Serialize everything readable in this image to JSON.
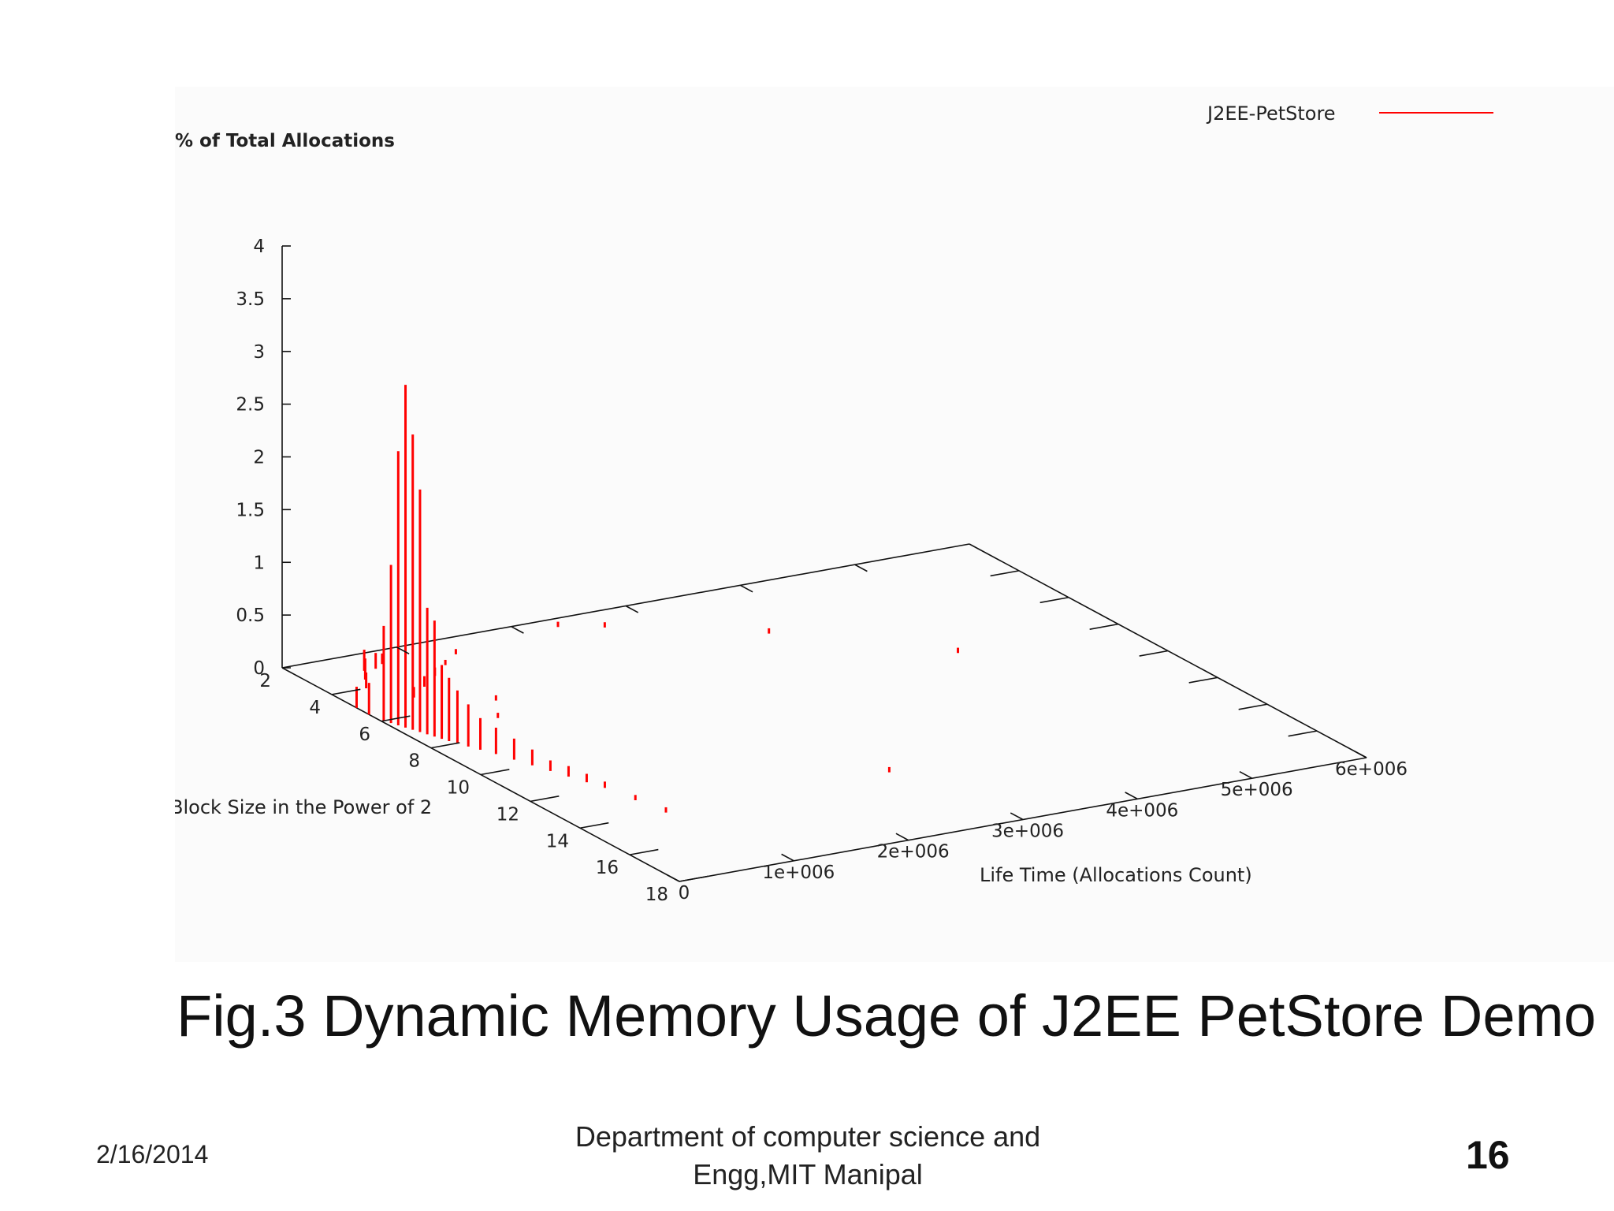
{
  "slide": {
    "caption": "Fig.3 Dynamic Memory Usage of J2EE PetStore Demo",
    "footer": {
      "date": "2/16/2014",
      "department_line1": "Department of computer science and",
      "department_line2": "Engg,MIT Manipal",
      "page_number": "16"
    }
  },
  "chart_data": {
    "type": "bar",
    "projection": "3d",
    "zlabel": "% of Total Allocations",
    "xlabel": "Life Time (Allocations Count)",
    "ylabel": "Block Size in the Power of 2",
    "legend": {
      "label": "J2EE-PetStore",
      "position": "top-right",
      "color": "#ff0000"
    },
    "z_ticks": [
      "0",
      "0.5",
      "1",
      "1.5",
      "2",
      "2.5",
      "3",
      "3.5",
      "4"
    ],
    "x_ticks": [
      "0",
      "1e+006",
      "2e+006",
      "3e+006",
      "4e+006",
      "5e+006",
      "6e+006"
    ],
    "y_ticks": [
      "2",
      "4",
      "6",
      "8",
      "10",
      "12",
      "14",
      "16",
      "18"
    ],
    "xlim": [
      0,
      6000000
    ],
    "ylim": [
      2,
      18
    ],
    "zlim": [
      0,
      4
    ],
    "series_color": "#ff0000",
    "series": [
      {
        "name": "J2EE-PetStore",
        "points": [
          {
            "x": 0,
            "y": 5,
            "z": 0.2
          },
          {
            "x": 0,
            "y": 5.5,
            "z": 0.3
          },
          {
            "x": 20000,
            "y": 6,
            "z": 0.9
          },
          {
            "x": 40000,
            "y": 6.2,
            "z": 1.5
          },
          {
            "x": 60000,
            "y": 6.4,
            "z": 2.6
          },
          {
            "x": 80000,
            "y": 6.6,
            "z": 3.25
          },
          {
            "x": 100000,
            "y": 6.8,
            "z": 2.8
          },
          {
            "x": 120000,
            "y": 7,
            "z": 2.3
          },
          {
            "x": 140000,
            "y": 7.2,
            "z": 1.2
          },
          {
            "x": 160000,
            "y": 7.4,
            "z": 1.1
          },
          {
            "x": 180000,
            "y": 7.6,
            "z": 0.7
          },
          {
            "x": 200000,
            "y": 7.8,
            "z": 0.6
          },
          {
            "x": 230000,
            "y": 8,
            "z": 0.5
          },
          {
            "x": 260000,
            "y": 8.3,
            "z": 0.4
          },
          {
            "x": 300000,
            "y": 8.6,
            "z": 0.3
          },
          {
            "x": 350000,
            "y": 9,
            "z": 0.25
          },
          {
            "x": 400000,
            "y": 9.5,
            "z": 0.2
          },
          {
            "x": 450000,
            "y": 10,
            "z": 0.15
          },
          {
            "x": 500000,
            "y": 10.5,
            "z": 0.1
          },
          {
            "x": 550000,
            "y": 11,
            "z": 0.1
          },
          {
            "x": 600000,
            "y": 11.5,
            "z": 0.08
          },
          {
            "x": 650000,
            "y": 12,
            "z": 0.06
          },
          {
            "x": 700000,
            "y": 13,
            "z": 0.05
          },
          {
            "x": 750000,
            "y": 14,
            "z": 0.05
          },
          {
            "x": 300000,
            "y": 4,
            "z": 0.15
          },
          {
            "x": 400000,
            "y": 3.5,
            "z": 0.2
          },
          {
            "x": 500000,
            "y": 3,
            "z": 0.2
          },
          {
            "x": 600000,
            "y": 3,
            "z": 0.15
          },
          {
            "x": 700000,
            "y": 2.8,
            "z": 0.1
          },
          {
            "x": 500000,
            "y": 5,
            "z": 0.1
          },
          {
            "x": 700000,
            "y": 4.5,
            "z": 0.1
          },
          {
            "x": 900000,
            "y": 4,
            "z": 0.08
          },
          {
            "x": 1100000,
            "y": 3.5,
            "z": 0.05
          },
          {
            "x": 1300000,
            "y": 3,
            "z": 0.05
          },
          {
            "x": 1000000,
            "y": 6,
            "z": 0.05
          },
          {
            "x": 800000,
            "y": 7,
            "z": 0.05
          },
          {
            "x": 2300000,
            "y": 2.5,
            "z": 0.05
          },
          {
            "x": 2600000,
            "y": 3,
            "z": 0.05
          },
          {
            "x": 3600000,
            "y": 5,
            "z": 0.05
          },
          {
            "x": 2700000,
            "y": 14,
            "z": 0.05
          },
          {
            "x": 4600000,
            "y": 8,
            "z": 0.05
          }
        ]
      }
    ]
  }
}
